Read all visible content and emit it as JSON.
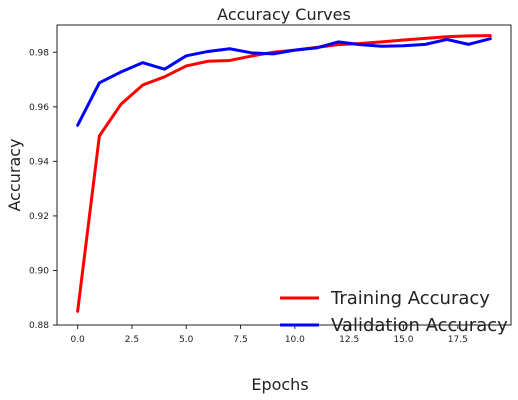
{
  "chart_data": {
    "type": "line",
    "title": "Accuracy Curves",
    "xlabel": "Epochs",
    "ylabel": "Accuracy",
    "xlim": [
      -0.95,
      19.95
    ],
    "ylim": [
      0.88,
      0.99
    ],
    "xticks": [
      0.0,
      2.5,
      5.0,
      7.5,
      10.0,
      12.5,
      15.0,
      17.5
    ],
    "xtick_labels": [
      "0.0",
      "2.5",
      "5.0",
      "7.5",
      "10.0",
      "12.5",
      "15.0",
      "17.5"
    ],
    "yticks": [
      0.88,
      0.9,
      0.92,
      0.94,
      0.96,
      0.98
    ],
    "ytick_labels": [
      "0.88",
      "0.90",
      "0.92",
      "0.94",
      "0.96",
      "0.98"
    ],
    "grid": false,
    "legend_position": "lower-right",
    "x": [
      0,
      1,
      2,
      3,
      4,
      5,
      6,
      7,
      8,
      9,
      10,
      11,
      12,
      13,
      14,
      15,
      16,
      17,
      18,
      19
    ],
    "series": [
      {
        "name": "Training Accuracy",
        "color": "#ff0000",
        "values": [
          0.885,
          0.9493,
          0.961,
          0.968,
          0.971,
          0.975,
          0.9767,
          0.977,
          0.9786,
          0.98,
          0.9808,
          0.9818,
          0.9828,
          0.9832,
          0.9838,
          0.9845,
          0.9851,
          0.9857,
          0.986,
          0.9861
        ]
      },
      {
        "name": "Validation Accuracy",
        "color": "#0000ff",
        "values": [
          0.9532,
          0.9688,
          0.9728,
          0.9762,
          0.9738,
          0.9787,
          0.9803,
          0.9813,
          0.9798,
          0.9794,
          0.9808,
          0.9816,
          0.9838,
          0.9828,
          0.9822,
          0.9824,
          0.9829,
          0.9847,
          0.9829,
          0.985
        ]
      }
    ]
  }
}
